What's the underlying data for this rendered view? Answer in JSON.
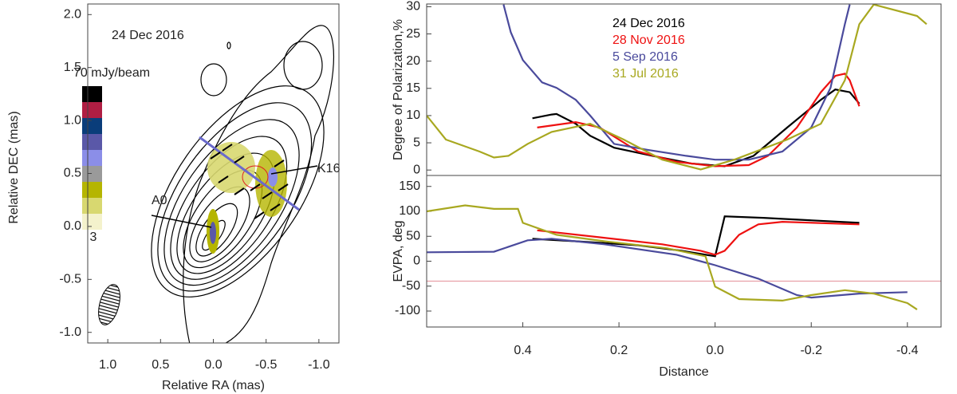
{
  "chart_data": [
    {
      "type": "map",
      "title": "24 Dec 2016",
      "xlabel": "Relative RA (mas)",
      "ylabel": "Relative DEC (mas)",
      "xlim": [
        1.19,
        -1.19
      ],
      "ylim": [
        -1.1,
        2.1
      ],
      "xticks": [
        {
          "value": 1,
          "label": "1.0"
        },
        0.5,
        {
          "value": 0,
          "label": "0.0"
        },
        -0.5,
        {
          "value": -1,
          "label": "-1.0"
        }
      ],
      "yticks": [
        {
          "value": 2,
          "label": "2.0"
        },
        1.5,
        {
          "value": 1,
          "label": "1.0"
        },
        0.5,
        {
          "value": 0,
          "label": "0.0"
        },
        -0.5,
        {
          "value": -1,
          "label": "-1.0"
        }
      ],
      "annotations": [
        "A0",
        "K16"
      ],
      "colorbar": {
        "max_label": "70 mJy/beam",
        "min_label": "3",
        "colors": [
          "#000000",
          "#b01e43",
          "#0a3d7a",
          "#5a58a8",
          "#8b8ee8",
          "#9a9a9a",
          "#b5b500",
          "#d8d870",
          "#f4f2cc"
        ]
      }
    },
    {
      "type": "line",
      "ylabel": "Degree of Polarization,%",
      "xlim": [
        0.6,
        -0.47
      ],
      "ylim": [
        -1,
        30.5
      ],
      "yticks": [
        0,
        5,
        10,
        15,
        20,
        25,
        30
      ],
      "series": [
        {
          "name": "24 Dec 2016",
          "color": "#000000",
          "x": [
            0.38,
            0.34,
            0.33,
            0.29,
            0.26,
            0.21,
            0.13,
            0.05,
            -0.02,
            -0.08,
            -0.15,
            -0.22,
            -0.25,
            -0.28,
            -0.3
          ],
          "values": [
            9.5,
            10.2,
            10.3,
            8.5,
            6.3,
            4.1,
            2.6,
            1.2,
            0.7,
            2.6,
            7.8,
            12.9,
            14.8,
            14.3,
            12.2
          ]
        },
        {
          "name": "28 Nov 2016",
          "color": "#ee1111",
          "x": [
            0.37,
            0.29,
            0.24,
            0.16,
            0.08,
            0.0,
            -0.07,
            -0.11,
            -0.17,
            -0.22,
            -0.25,
            -0.27,
            -0.28,
            -0.3
          ],
          "values": [
            7.8,
            8.8,
            7.8,
            3.4,
            1.5,
            0.7,
            0.9,
            2.6,
            7.8,
            14.3,
            17.3,
            17.7,
            16.5,
            11.7
          ]
        },
        {
          "name": "5 Sep 2016",
          "color": "#4a4a9c",
          "x": [
            0.44,
            0.425,
            0.4,
            0.36,
            0.33,
            0.29,
            0.26,
            0.21,
            0.14,
            0.06,
            0.0,
            -0.07,
            -0.14,
            -0.2,
            -0.24,
            -0.27,
            -0.28
          ],
          "values": [
            30.4,
            25.3,
            20.2,
            16.1,
            15.1,
            12.9,
            10,
            4.8,
            3.7,
            2.6,
            1.9,
            1.9,
            3.4,
            7.8,
            15.1,
            26.8,
            30.4
          ]
        },
        {
          "name": "31 Jul 2016",
          "color": "#a8a820",
          "x": [
            0.6,
            0.56,
            0.49,
            0.46,
            0.43,
            0.39,
            0.34,
            0.26,
            0.19,
            0.11,
            0.03,
            -0.04,
            -0.15,
            -0.22,
            -0.27,
            -0.3,
            -0.33,
            -0.42,
            -0.44
          ],
          "values": [
            10,
            5.6,
            3.4,
            2.3,
            2.6,
            4.8,
            7,
            8.5,
            5.6,
            1.9,
            0.1,
            1.9,
            5.6,
            8.5,
            16.5,
            26.8,
            30.4,
            28.3,
            26.8
          ]
        }
      ]
    },
    {
      "type": "line",
      "ylabel": "EVPA, deg",
      "xlabel": "Distance",
      "xlim": [
        0.6,
        -0.47
      ],
      "ylim": [
        -132,
        172
      ],
      "yticks": [
        -100,
        -50,
        0,
        50,
        100,
        150
      ],
      "xticks": [
        0.4,
        0.2,
        {
          "value": 0,
          "label": "0.0"
        },
        -0.2,
        -0.4
      ],
      "hline": {
        "value": -40,
        "color": "#e8a0a8"
      },
      "series": [
        {
          "name": "24 Dec 2016",
          "color": "#000000",
          "x": [
            0.38,
            0.29,
            0.16,
            0.07,
            0.0,
            -0.02,
            -0.1,
            -0.3
          ],
          "values": [
            45,
            40,
            32,
            21,
            10,
            90,
            87,
            77
          ]
        },
        {
          "name": "28 Nov 2016",
          "color": "#ee1111",
          "x": [
            0.37,
            0.24,
            0.11,
            0.03,
            0.0,
            -0.02,
            -0.05,
            -0.09,
            -0.14,
            -0.3
          ],
          "values": [
            62,
            48,
            34,
            21,
            13,
            21,
            53,
            74,
            79,
            74
          ]
        },
        {
          "name": "5 Sep 2016",
          "color": "#4a4a9c",
          "x": [
            0.6,
            0.46,
            0.39,
            0.34,
            0.23,
            0.08,
            0.0,
            -0.09,
            -0.17,
            -0.2,
            -0.3,
            -0.4
          ],
          "values": [
            18,
            19,
            42,
            45,
            34,
            13,
            -8,
            -35,
            -68,
            -73,
            -65,
            -62
          ]
        },
        {
          "name": "31 Jul 2016",
          "color": "#a8a820",
          "x": [
            0.6,
            0.52,
            0.46,
            0.41,
            0.4,
            0.33,
            0.23,
            0.1,
            0.02,
            0.0,
            -0.05,
            -0.14,
            -0.2,
            -0.27,
            -0.33,
            -0.4,
            -0.42
          ],
          "values": [
            100,
            112,
            105,
            105,
            77,
            53,
            40,
            26,
            10,
            -51,
            -76,
            -79,
            -68,
            -58,
            -65,
            -84,
            -97
          ]
        }
      ]
    }
  ]
}
